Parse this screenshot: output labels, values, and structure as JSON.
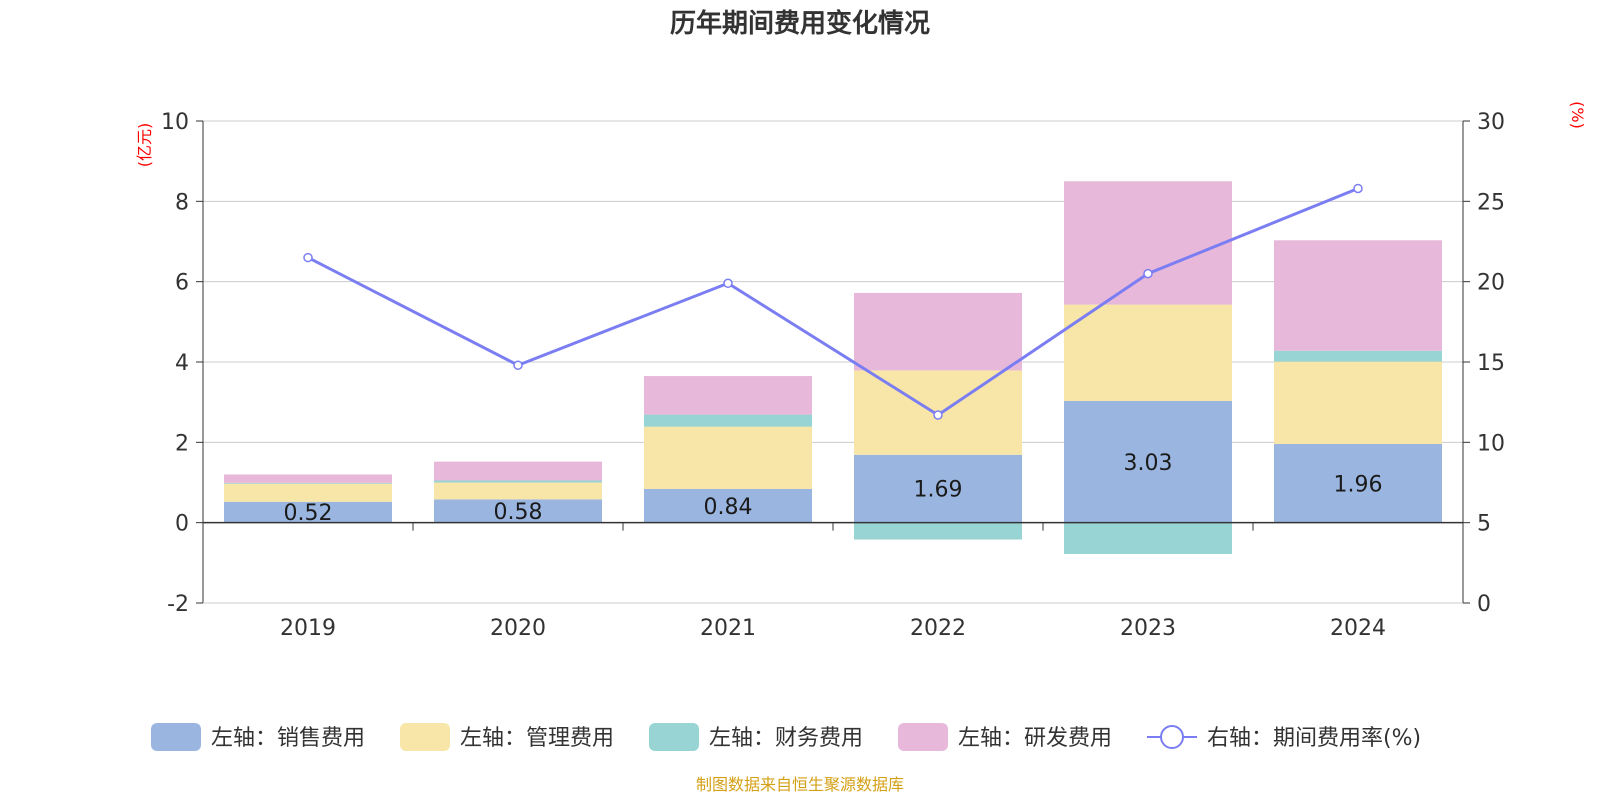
{
  "chart_data": {
    "type": "bar",
    "stacked": true,
    "title": "历年期间费用变化情况",
    "categories": [
      "2019",
      "2020",
      "2021",
      "2022",
      "2023",
      "2024"
    ],
    "y_left": {
      "unit": "(亿元)",
      "min": -2,
      "max": 10,
      "ticks": [
        -2,
        0,
        2,
        4,
        6,
        8,
        10
      ]
    },
    "y_right": {
      "unit": "(%)",
      "min": 0,
      "max": 30,
      "ticks": [
        0,
        5,
        10,
        15,
        20,
        25,
        30
      ]
    },
    "series": [
      {
        "name": "左轴：销售费用",
        "axis": "left",
        "color": "#9ab6e0",
        "values": [
          0.52,
          0.58,
          0.84,
          1.69,
          3.03,
          1.96
        ],
        "show_labels": true
      },
      {
        "name": "左轴：管理费用",
        "axis": "left",
        "color": "#f7e6a7",
        "values": [
          0.45,
          0.42,
          1.55,
          2.1,
          2.4,
          2.05
        ],
        "show_labels": false
      },
      {
        "name": "左轴：财务费用",
        "axis": "left",
        "color": "#98d4d4",
        "values": [
          0.02,
          0.05,
          0.3,
          -0.42,
          -0.78,
          0.27
        ],
        "show_labels": false
      },
      {
        "name": "左轴：研发费用",
        "axis": "left",
        "color": "#e8b8da",
        "values": [
          0.21,
          0.47,
          0.96,
          1.93,
          3.07,
          2.75
        ],
        "show_labels": false
      }
    ],
    "line": {
      "name": "右轴：期间费用率(%)",
      "axis": "right",
      "color": "#7b7ef2",
      "values": [
        21.5,
        14.8,
        19.9,
        11.7,
        20.5,
        25.8
      ]
    },
    "legend_position": "bottom",
    "source": "制图数据来自恒生聚源数据库",
    "source_color": "#d4a017"
  }
}
